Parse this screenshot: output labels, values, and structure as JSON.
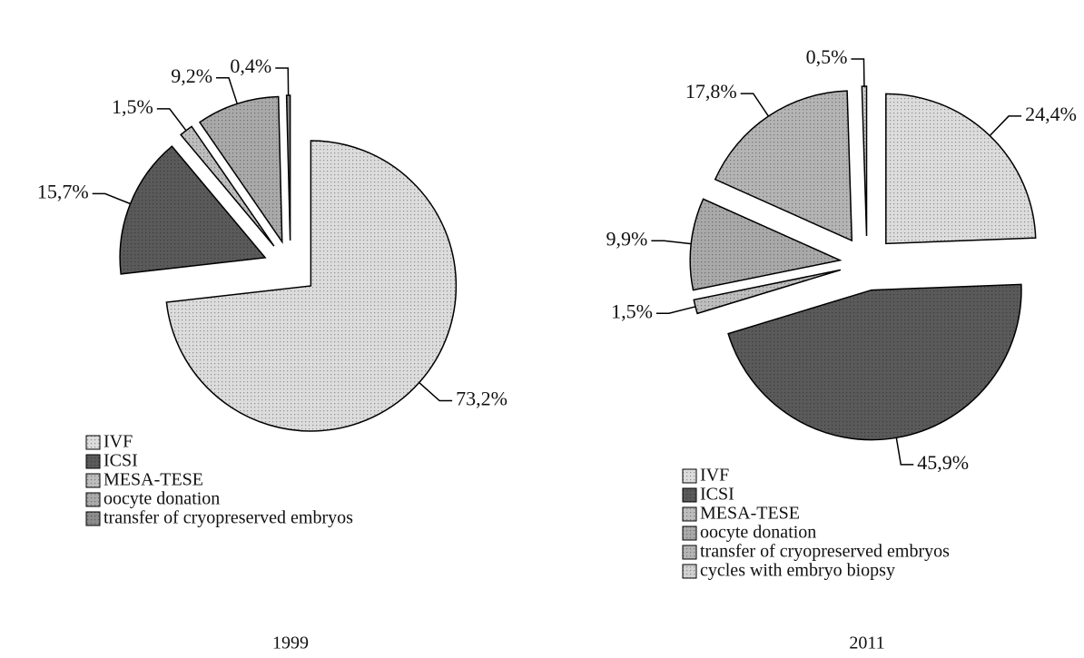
{
  "chart_data": [
    {
      "type": "pie",
      "title": "1999",
      "categories": [
        "IVF",
        "ICSI",
        "MESA-TESE",
        "oocyte donation",
        "transfer of cryopreserved embryos"
      ],
      "values": [
        73.2,
        15.7,
        1.5,
        9.2,
        0.4
      ],
      "value_labels": [
        "73,2%",
        "15,7%",
        "1,5%",
        "9,2%",
        "0,4%"
      ],
      "colors": [
        "#dcdcdc",
        "#5a5a5a",
        "#bdbdbd",
        "#a9a9a9",
        "#8c8c8c"
      ]
    },
    {
      "type": "pie",
      "title": "2011",
      "categories": [
        "IVF",
        "ICSI",
        "MESA-TESE",
        "oocyte donation",
        "transfer of cryopreserved embryos",
        "cycles with embryo biopsy"
      ],
      "values": [
        24.4,
        45.9,
        1.5,
        9.9,
        17.8,
        0.5
      ],
      "value_labels": [
        "24,4%",
        "45,9%",
        "1,5%",
        "9,9%",
        "17,8%",
        "0,5%"
      ],
      "colors": [
        "#dcdcdc",
        "#5a5a5a",
        "#bdbdbd",
        "#a9a9a9",
        "#b4b4b4",
        "#d0d0d0"
      ]
    }
  ]
}
